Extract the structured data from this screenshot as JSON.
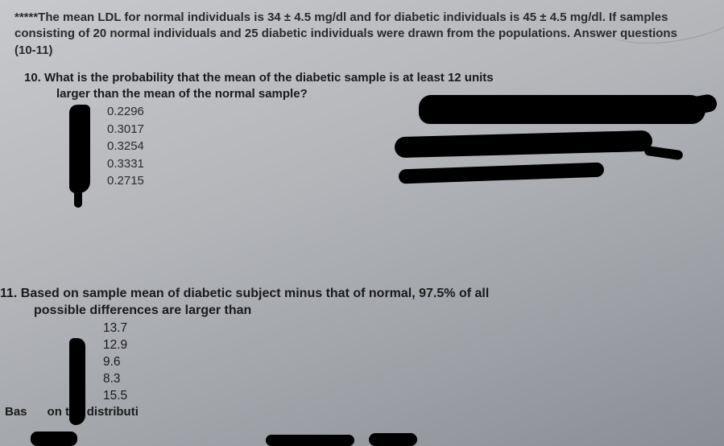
{
  "intro": {
    "text": "*****The mean LDL for normal individuals is 34 ± 4.5 mg/dl and for diabetic individuals is 45 ± 4.5 mg/dl. If samples consisting of 20 normal individuals and 25 diabetic individuals were drawn from the populations. Answer questions (10-11)"
  },
  "q10": {
    "line1": "10. What is the probability that the mean of the diabetic sample is at least 12 units",
    "line2": "larger than the mean of the normal sample?",
    "options": [
      "0.2296",
      "0.3017",
      "0.3254",
      "0.3331",
      "0.2715"
    ]
  },
  "q11": {
    "line1": "11. Based on sample mean of diabetic subject minus that of normal, 97.5% of all",
    "line2": "possible differences are larger than",
    "options": [
      "13.7",
      "12.9",
      "9.6",
      "8.3",
      "15.5"
    ]
  },
  "cutoff": {
    "left": "Bas",
    "mid": "on the distributi"
  }
}
